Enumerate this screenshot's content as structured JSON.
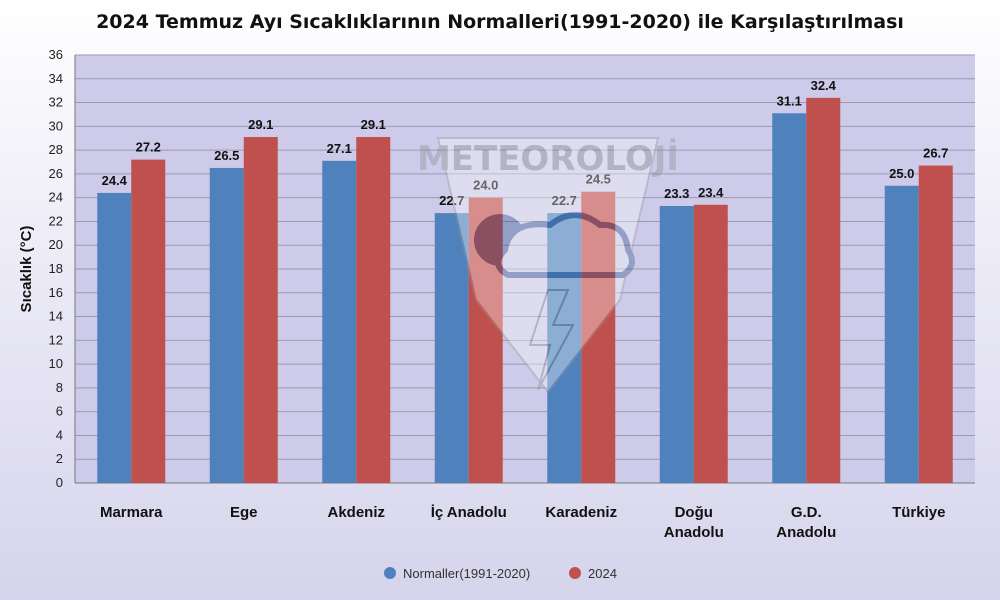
{
  "chart_data": {
    "type": "bar",
    "title": "2024 Temmuz Ayı Sıcaklıklarının Normalleri(1991-2020) ile Karşılaştırılması",
    "ylabel": "Sıcaklık (°C)",
    "xlabel": "",
    "ylim": [
      0,
      36
    ],
    "ytick_step": 2,
    "grid": true,
    "legend_position": "bottom",
    "categories": [
      [
        "Marmara"
      ],
      [
        "Ege"
      ],
      [
        "Akdeniz"
      ],
      [
        "İç Anadolu"
      ],
      [
        "Karadeniz"
      ],
      [
        "Doğu",
        "Anadolu"
      ],
      [
        "G.D.",
        "Anadolu"
      ],
      [
        "Türkiye"
      ]
    ],
    "series": [
      {
        "name": "Normaller(1991-2020)",
        "color": "#4f81bd",
        "values": [
          24.4,
          26.5,
          27.1,
          22.7,
          22.7,
          23.3,
          31.1,
          25.0
        ],
        "labels": [
          "24.4",
          "26.5",
          "27.1",
          "22.7",
          "22.7",
          "23.3",
          "31.1",
          "25.0"
        ]
      },
      {
        "name": "2024",
        "color": "#c0504d",
        "values": [
          27.2,
          29.1,
          29.1,
          24.0,
          24.5,
          23.4,
          32.4,
          26.7
        ],
        "labels": [
          "27.2",
          "29.1",
          "29.1",
          "24.0",
          "24.5",
          "23.4",
          "32.4",
          "26.7"
        ]
      }
    ]
  },
  "watermark": {
    "text": "METEOROLOJİ",
    "icon": "meteoroloji-shield-logo"
  }
}
